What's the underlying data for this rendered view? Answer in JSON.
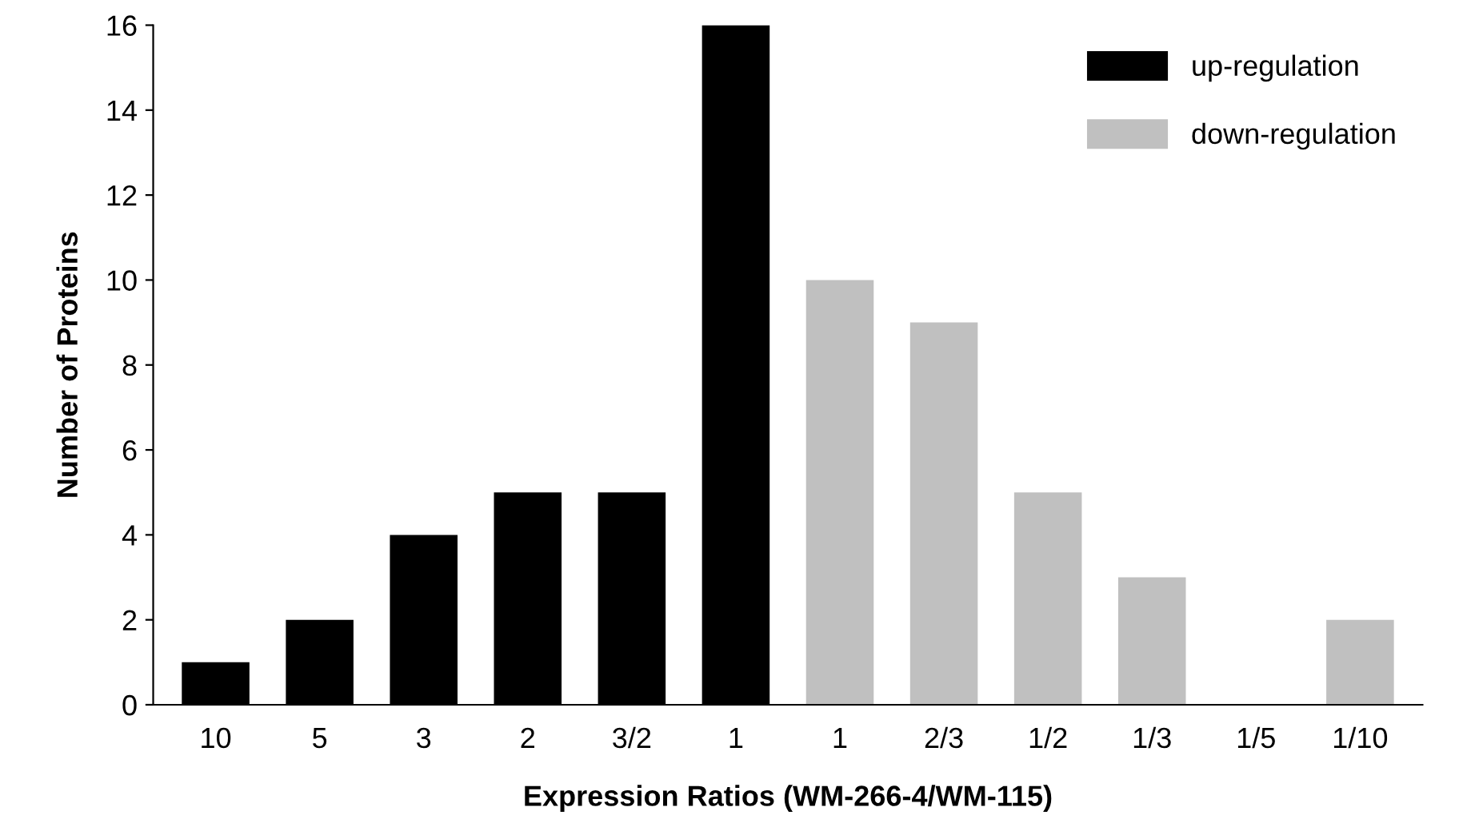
{
  "chart_data": {
    "type": "bar",
    "xlabel": "Expression Ratios (WM-266-4/WM-115)",
    "ylabel": "Number of Proteins",
    "categories": [
      "10",
      "5",
      "3",
      "2",
      "3/2",
      "1",
      "1",
      "2/3",
      "1/2",
      "1/3",
      "1/5",
      "1/10"
    ],
    "series": [
      {
        "name": "up-regulation",
        "color": "#000000",
        "values": [
          1,
          2,
          4,
          5,
          5,
          16,
          null,
          null,
          null,
          null,
          null,
          null
        ]
      },
      {
        "name": "down-regulation",
        "color": "#c0c0c0",
        "values": [
          null,
          null,
          null,
          null,
          null,
          null,
          10,
          9,
          5,
          3,
          0,
          2
        ]
      }
    ],
    "ylim": [
      0,
      16
    ],
    "yticks": [
      0,
      2,
      4,
      6,
      8,
      10,
      12,
      14,
      16
    ],
    "grid": false,
    "legend": "top right"
  }
}
